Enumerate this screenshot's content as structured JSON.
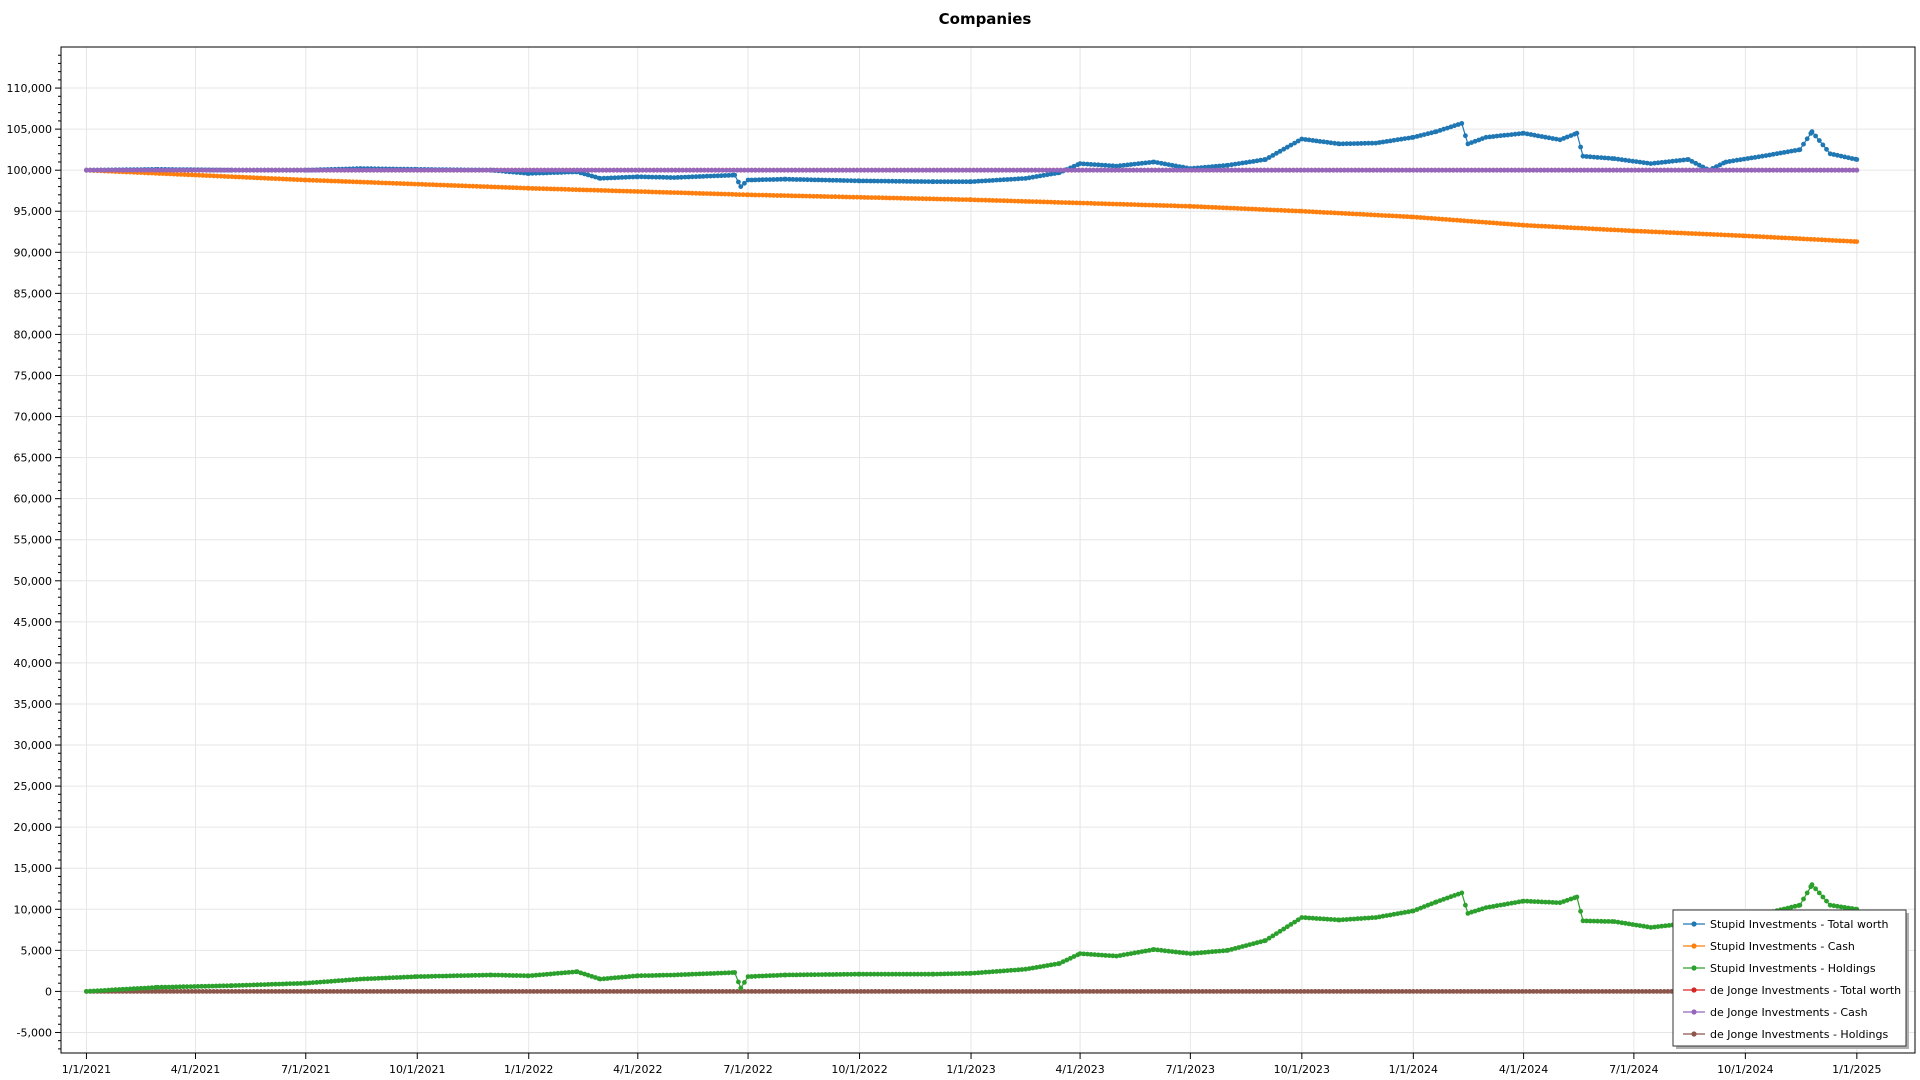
{
  "chart_data": {
    "type": "line",
    "title": "Companies",
    "xlabel": "",
    "ylabel": "",
    "x_range": [
      "2020-12-11",
      "2025-02-18"
    ],
    "ylim": [
      -7500,
      115000
    ],
    "y_ticks": [
      -5000,
      0,
      5000,
      10000,
      15000,
      20000,
      25000,
      30000,
      35000,
      40000,
      45000,
      50000,
      55000,
      60000,
      65000,
      70000,
      75000,
      80000,
      85000,
      90000,
      95000,
      100000,
      105000,
      110000
    ],
    "y_tick_labels": [
      "-5,000",
      "0",
      "5,000",
      "10,000",
      "15,000",
      "20,000",
      "25,000",
      "30,000",
      "35,000",
      "40,000",
      "45,000",
      "50,000",
      "55,000",
      "60,000",
      "65,000",
      "70,000",
      "75,000",
      "80,000",
      "85,000",
      "90,000",
      "95,000",
      "100,000",
      "105,000",
      "110,000"
    ],
    "x_ticks": [
      "2021-01-01",
      "2021-04-01",
      "2021-07-01",
      "2021-10-01",
      "2022-01-01",
      "2022-04-01",
      "2022-07-01",
      "2022-10-01",
      "2023-01-01",
      "2023-04-01",
      "2023-07-01",
      "2023-10-01",
      "2024-01-01",
      "2024-04-01",
      "2024-07-01",
      "2024-10-01",
      "2025-01-01"
    ],
    "x_tick_labels": [
      "1/1/2021",
      "4/1/2021",
      "7/1/2021",
      "10/1/2021",
      "1/1/2022",
      "4/1/2022",
      "7/1/2022",
      "10/1/2022",
      "1/1/2023",
      "4/1/2023",
      "7/1/2023",
      "10/1/2023",
      "1/1/2024",
      "4/1/2024",
      "7/1/2024",
      "10/1/2024",
      "1/1/2025"
    ],
    "grid": true,
    "legend_position": "bottom-right",
    "series": [
      {
        "name": "Stupid Investments - Total worth",
        "color": "#1f77b4",
        "x": [
          "2021-01-01",
          "2021-03-01",
          "2021-05-01",
          "2021-07-01",
          "2021-08-15",
          "2021-10-01",
          "2021-12-01",
          "2022-01-01",
          "2022-02-10",
          "2022-03-01",
          "2022-04-01",
          "2022-05-01",
          "2022-06-20",
          "2022-06-25",
          "2022-07-01",
          "2022-08-01",
          "2022-10-01",
          "2022-12-01",
          "2023-01-01",
          "2023-02-15",
          "2023-03-15",
          "2023-04-01",
          "2023-05-01",
          "2023-06-01",
          "2023-07-01",
          "2023-08-01",
          "2023-09-01",
          "2023-10-01",
          "2023-11-01",
          "2023-12-01",
          "2024-01-01",
          "2024-01-20",
          "2024-02-10",
          "2024-02-15",
          "2024-03-01",
          "2024-04-01",
          "2024-05-01",
          "2024-05-15",
          "2024-05-20",
          "2024-06-15",
          "2024-07-15",
          "2024-08-15",
          "2024-09-01",
          "2024-09-15",
          "2024-10-15",
          "2024-11-15",
          "2024-11-25",
          "2024-12-10",
          "2025-01-01"
        ],
        "y": [
          100000,
          100100,
          100000,
          100000,
          100200,
          100100,
          100000,
          99600,
          99800,
          99000,
          99200,
          99100,
          99400,
          98000,
          98800,
          98900,
          98700,
          98600,
          98600,
          99000,
          99700,
          100800,
          100500,
          101000,
          100200,
          100600,
          101300,
          103800,
          103200,
          103300,
          104000,
          104700,
          105700,
          103200,
          104000,
          104500,
          103700,
          104500,
          101700,
          101400,
          100800,
          101300,
          100000,
          101000,
          101700,
          102500,
          104700,
          102000,
          101300
        ]
      },
      {
        "name": "Stupid Investments - Cash",
        "color": "#ff7f0e",
        "x": [
          "2021-01-01",
          "2021-07-01",
          "2022-01-01",
          "2022-07-01",
          "2023-01-01",
          "2023-07-01",
          "2023-10-01",
          "2024-01-01",
          "2024-04-01",
          "2024-07-01",
          "2024-10-01",
          "2025-01-01"
        ],
        "y": [
          100000,
          98800,
          97800,
          97000,
          96400,
          95600,
          95000,
          94300,
          93300,
          92600,
          92000,
          91300
        ]
      },
      {
        "name": "Stupid Investments - Holdings",
        "color": "#2ca02c",
        "x": [
          "2021-01-01",
          "2021-03-01",
          "2021-05-01",
          "2021-07-01",
          "2021-08-15",
          "2021-10-01",
          "2021-12-01",
          "2022-01-01",
          "2022-02-10",
          "2022-03-01",
          "2022-04-01",
          "2022-05-01",
          "2022-06-20",
          "2022-06-25",
          "2022-07-01",
          "2022-08-01",
          "2022-10-01",
          "2022-12-01",
          "2023-01-01",
          "2023-02-15",
          "2023-03-15",
          "2023-04-01",
          "2023-05-01",
          "2023-06-01",
          "2023-07-01",
          "2023-08-01",
          "2023-09-01",
          "2023-10-01",
          "2023-11-01",
          "2023-12-01",
          "2024-01-01",
          "2024-01-20",
          "2024-02-10",
          "2024-02-15",
          "2024-03-01",
          "2024-04-01",
          "2024-05-01",
          "2024-05-15",
          "2024-05-20",
          "2024-06-15",
          "2024-07-15",
          "2024-08-15",
          "2024-09-01",
          "2024-09-15",
          "2024-10-15",
          "2024-11-15",
          "2024-11-25",
          "2024-12-10",
          "2025-01-01"
        ],
        "y": [
          0,
          500,
          700,
          1000,
          1500,
          1800,
          2000,
          1900,
          2400,
          1500,
          1900,
          2000,
          2300,
          400,
          1800,
          2000,
          2100,
          2100,
          2200,
          2700,
          3400,
          4600,
          4300,
          5100,
          4600,
          5000,
          6200,
          9000,
          8700,
          9000,
          9800,
          10900,
          12000,
          9500,
          10200,
          11000,
          10800,
          11500,
          8600,
          8500,
          7800,
          8300,
          7700,
          9000,
          9400,
          10500,
          13000,
          10500,
          10000
        ]
      },
      {
        "name": "de Jonge Investments - Total worth",
        "color": "#d62728",
        "x": [
          "2021-01-01",
          "2025-01-01"
        ],
        "y": [
          100000,
          100000
        ]
      },
      {
        "name": "de Jonge Investments - Cash",
        "color": "#9467bd",
        "x": [
          "2021-01-01",
          "2025-01-01"
        ],
        "y": [
          100000,
          100000
        ]
      },
      {
        "name": "de Jonge Investments - Holdings",
        "color": "#8c564b",
        "x": [
          "2021-01-01",
          "2025-01-01"
        ],
        "y": [
          0,
          0
        ]
      }
    ]
  }
}
